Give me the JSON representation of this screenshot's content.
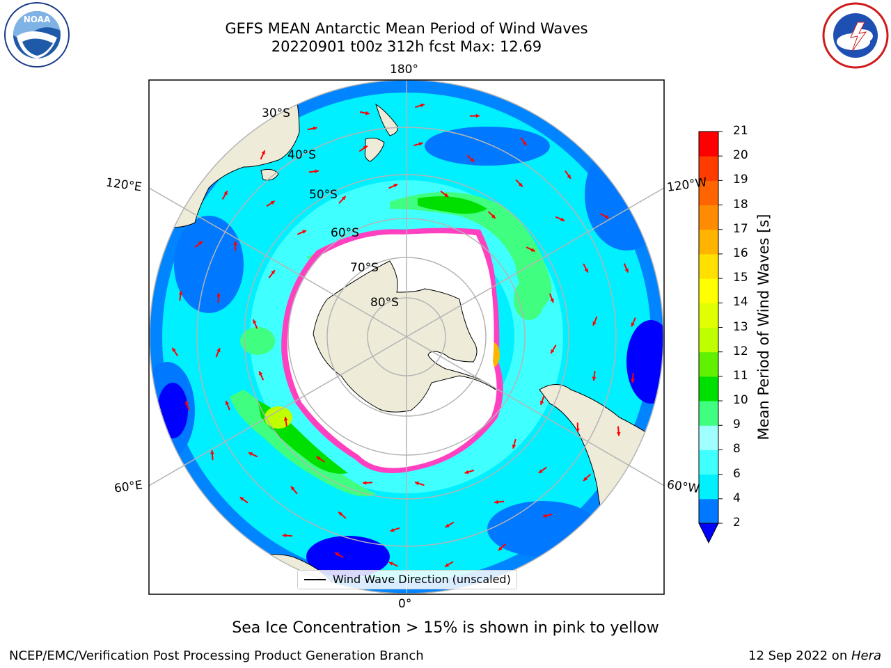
{
  "title": {
    "line1": "GEFS MEAN Antarctic Mean Period of Wind Waves",
    "line2": "20220901 t00z 312h fcst   Max: 12.69"
  },
  "logos": {
    "noaa": "NOAA",
    "nws": "NATIONAL WEATHER SERVICE"
  },
  "map": {
    "longitude_labels": [
      "180°",
      "120°E",
      "120°W",
      "60°E",
      "60°W",
      "0°"
    ],
    "latitude_labels": [
      "30°S",
      "40°S",
      "50°S",
      "60°S",
      "70°S",
      "80°S"
    ],
    "ocean_base_color": "#00f0ff",
    "land_color": "#efebd9",
    "ice_color": "#ffffff",
    "arrow_color": "#ff0000",
    "grid_color": "#b4b4b4"
  },
  "legend": {
    "label": "Wind Wave Direction (unscaled)"
  },
  "colorbar": {
    "title": "Mean Period of Wind Waves [s]",
    "ticks": [
      "2",
      "4",
      "6",
      "8",
      "9",
      "10",
      "11",
      "12",
      "13",
      "14",
      "15",
      "16",
      "17",
      "18",
      "19",
      "20",
      "21"
    ],
    "colors": [
      "#0000ff",
      "#0078ff",
      "#00f0ff",
      "#40ffff",
      "#a0ffff",
      "#40ff80",
      "#00e000",
      "#60f000",
      "#c0ff00",
      "#e0ff00",
      "#ffff00",
      "#ffe000",
      "#ffb400",
      "#ff8c00",
      "#ff6400",
      "#ff3c00",
      "#ff0000"
    ]
  },
  "note": "Sea Ice Concentration > 15% is shown in pink to yellow",
  "footer": {
    "left": "NCEP/EMC/Verification Post Processing Product Generation Branch",
    "right_date": "12 Sep 2022 on ",
    "right_machine": "Hera"
  }
}
